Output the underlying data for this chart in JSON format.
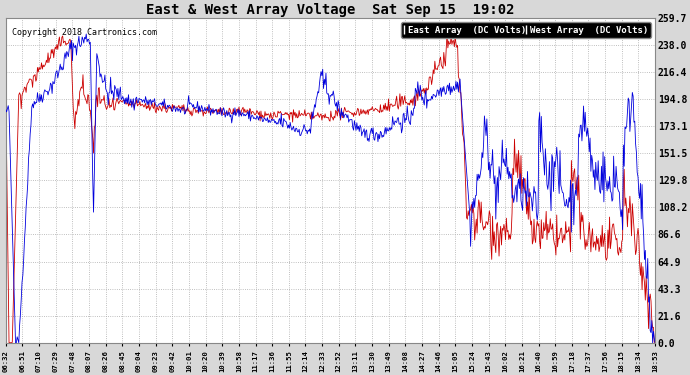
{
  "title": "East & West Array Voltage  Sat Sep 15  19:02",
  "copyright": "Copyright 2018 Cartronics.com",
  "legend_east": "East Array  (DC Volts)",
  "legend_west": "West Array  (DC Volts)",
  "east_color": "#0000dd",
  "west_color": "#cc0000",
  "legend_east_bg": "#2222bb",
  "legend_west_bg": "#cc0000",
  "bg_color": "#d8d8d8",
  "plot_bg": "#ffffff",
  "grid_color": "#aaaaaa",
  "title_color": "#000000",
  "text_color": "#000000",
  "ylim": [
    0.0,
    259.7
  ],
  "yticks": [
    0.0,
    21.6,
    43.3,
    64.9,
    86.6,
    108.2,
    129.8,
    151.5,
    173.1,
    194.8,
    216.4,
    238.0,
    259.7
  ],
  "ytick_labels": [
    "0.0",
    "21.6",
    "43.3",
    "64.9",
    "86.6",
    "108.2",
    "129.8",
    "151.5",
    "173.1",
    "194.8",
    "216.4",
    "238.0",
    "259.7"
  ],
  "xtick_labels": [
    "06:32",
    "06:51",
    "07:10",
    "07:29",
    "07:48",
    "08:07",
    "08:26",
    "08:45",
    "09:04",
    "09:23",
    "09:42",
    "10:01",
    "10:20",
    "10:39",
    "10:58",
    "11:17",
    "11:36",
    "11:55",
    "12:14",
    "12:33",
    "12:52",
    "13:11",
    "13:30",
    "13:49",
    "14:08",
    "14:27",
    "14:46",
    "15:05",
    "15:24",
    "15:43",
    "16:02",
    "16:21",
    "16:40",
    "16:59",
    "17:18",
    "17:37",
    "17:56",
    "18:15",
    "18:34",
    "18:53"
  ]
}
